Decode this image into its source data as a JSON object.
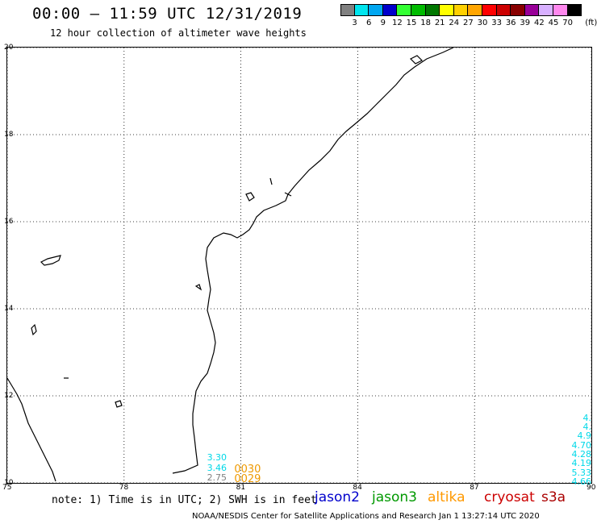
{
  "header": {
    "title": "00:00 – 11:59 UTC 12/31/2019",
    "subtitle": "12 hour collection of altimeter wave heights"
  },
  "colorbar": {
    "colors": [
      "#808080",
      "#00e5ee",
      "#00a6f0",
      "#0000cc",
      "#33ff33",
      "#00bb00",
      "#007700",
      "#ffff00",
      "#ffd000",
      "#ffa500",
      "#ff0000",
      "#cc0000",
      "#880000",
      "#990099",
      "#d8b0ff",
      "#ff88ee",
      "#000000"
    ],
    "ticks": [
      "3",
      "6",
      "9",
      "12",
      "15",
      "18",
      "21",
      "24",
      "27",
      "30",
      "33",
      "36",
      "39",
      "42",
      "45",
      "70"
    ],
    "unit": "(ft)"
  },
  "map": {
    "lat_range": [
      10,
      20
    ],
    "lon_range": [
      75,
      90
    ],
    "lat_labels": [
      "20",
      "18",
      "16",
      "14",
      "12",
      "10"
    ],
    "lon_labels": [
      "75",
      "78",
      "81",
      "84",
      "87",
      "90"
    ],
    "grid": "dotted",
    "observations_left": [
      {
        "text": "3.30",
        "color": "#00d8e8",
        "lon": 80.15,
        "lat": 10.55
      },
      {
        "text": "3.46",
        "color": "#00d8e8",
        "lon": 80.15,
        "lat": 10.32
      },
      {
        "text": "2.75",
        "color": "#808080",
        "lon": 80.15,
        "lat": 10.09
      },
      {
        "text": "0030",
        "color": "#ee9900",
        "lon": 80.85,
        "lat": 10.3
      },
      {
        "text": "0029",
        "color": "#ee9900",
        "lon": 80.85,
        "lat": 10.07
      }
    ],
    "observations_right": [
      {
        "text": "4.",
        "color": "#00d8e8",
        "lat": 11.45
      },
      {
        "text": "4.",
        "color": "#00d8e8",
        "lat": 11.24
      },
      {
        "text": "4.9",
        "color": "#00d8e8",
        "lat": 11.03
      },
      {
        "text": "4.70",
        "color": "#00d8e8",
        "lat": 10.82
      },
      {
        "text": "4.28",
        "color": "#00d8e8",
        "lat": 10.61
      },
      {
        "text": "4.19",
        "color": "#00d8e8",
        "lat": 10.4
      },
      {
        "text": "5.33",
        "color": "#00d8e8",
        "lat": 10.19
      },
      {
        "text": "4.66",
        "color": "#00d8e8",
        "lat": 9.98
      }
    ]
  },
  "note": "note: 1) Time is in UTC; 2) SWH is in feet",
  "satellites": [
    {
      "name": "jason2",
      "color": "#0000cc"
    },
    {
      "name": "jason3",
      "color": "#009900"
    },
    {
      "name": "altika",
      "color": "#ff9900"
    },
    {
      "name": "cryosat",
      "color": "#cc0000"
    },
    {
      "name": "s3a",
      "color": "#aa0000"
    }
  ],
  "footer": "NOAA/NESDIS Center for Satellite Applications and Research    Jan  1 13:27:14 UTC 2020"
}
